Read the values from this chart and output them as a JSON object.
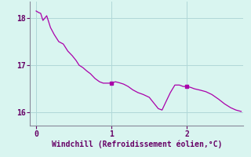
{
  "xlabel": "Windchill (Refroidissement éolien,°C)",
  "ylabel": "",
  "background_color": "#d9f5f0",
  "line_color": "#aa00aa",
  "marker_color": "#aa00aa",
  "grid_color": "#b0d8d8",
  "axis_color": "#888899",
  "text_color": "#660066",
  "xlim": [
    -0.08,
    2.75
  ],
  "ylim": [
    15.72,
    18.35
  ],
  "xticks": [
    0,
    1,
    2
  ],
  "yticks": [
    16,
    17,
    18
  ],
  "x": [
    0.0,
    0.03,
    0.06,
    0.09,
    0.14,
    0.19,
    0.24,
    0.3,
    0.36,
    0.42,
    0.48,
    0.53,
    0.57,
    0.62,
    0.67,
    0.72,
    0.78,
    0.84,
    0.89,
    0.94,
    1.0,
    1.05,
    1.1,
    1.16,
    1.22,
    1.28,
    1.35,
    1.42,
    1.5,
    1.57,
    1.62,
    1.67,
    1.72,
    1.78,
    1.84,
    1.9,
    1.95,
    2.0,
    2.05,
    2.1,
    2.18,
    2.25,
    2.33,
    2.42,
    2.5,
    2.58,
    2.65,
    2.72
  ],
  "y": [
    18.15,
    18.12,
    18.1,
    17.95,
    18.05,
    17.8,
    17.65,
    17.5,
    17.45,
    17.3,
    17.2,
    17.1,
    17.0,
    16.95,
    16.88,
    16.82,
    16.72,
    16.65,
    16.62,
    16.62,
    16.62,
    16.65,
    16.63,
    16.6,
    16.55,
    16.48,
    16.42,
    16.38,
    16.32,
    16.18,
    16.08,
    16.05,
    16.22,
    16.42,
    16.58,
    16.58,
    16.55,
    16.55,
    16.53,
    16.5,
    16.47,
    16.44,
    16.38,
    16.28,
    16.18,
    16.1,
    16.05,
    16.02
  ],
  "marker_points_x": [
    1.0,
    2.0
  ],
  "marker_points_y": [
    16.62,
    16.55
  ],
  "font_size_label": 7.0,
  "font_size_tick": 7.0
}
